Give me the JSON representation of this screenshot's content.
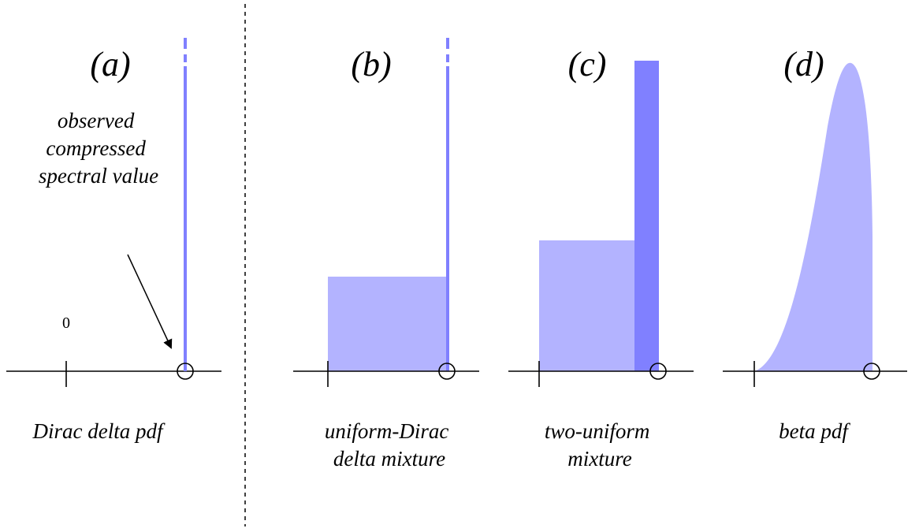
{
  "colors": {
    "light_fill": "#b3b3ff",
    "dark_fill": "#8080ff",
    "line": "#000000"
  },
  "panels": [
    {
      "label": "(a)",
      "caption_lines": [
        "Dirac delta pdf"
      ]
    },
    {
      "label": "(b)",
      "caption_lines": [
        "uniform-Dirac",
        "delta mixture"
      ]
    },
    {
      "label": "(c)",
      "caption_lines": [
        "two-uniform",
        "mixture"
      ]
    },
    {
      "label": "(d)",
      "caption_lines": [
        "beta pdf"
      ]
    }
  ],
  "annotation": {
    "lines": [
      "observed",
      "compressed",
      "spectral value"
    ]
  },
  "zero_label": "0"
}
